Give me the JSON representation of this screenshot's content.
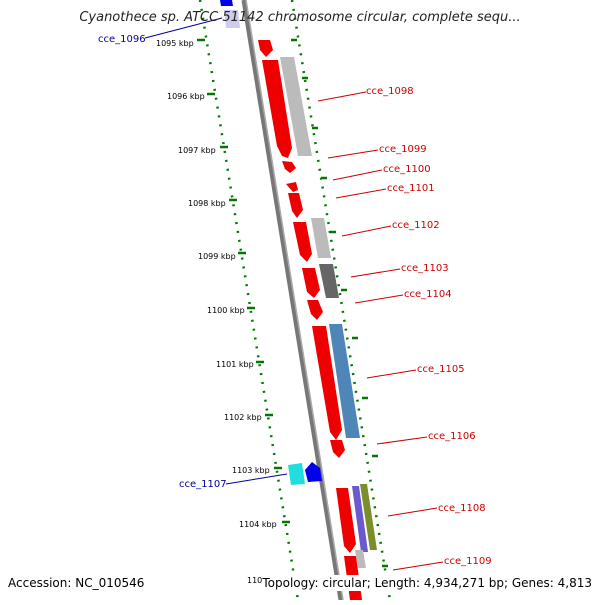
{
  "header": {
    "title": "Cyanothece sp. ATCC 51142 chromosome circular, complete sequ..."
  },
  "footer": {
    "accession": "Accession: NC_010546",
    "summary": "Topology: circular; Length: 4,934,271 bp; Genes: 4,813"
  },
  "ruler": {
    "ticks": [
      "1095 kbp",
      "1096 kbp",
      "1097 kbp",
      "1098 kbp",
      "1099 kbp",
      "1100 kbp",
      "1101 kbp",
      "1102 kbp",
      "1103 kbp",
      "1104 kbp",
      "110"
    ]
  },
  "genes_right": [
    "cce_1098",
    "cce_1099",
    "cce_1100",
    "cce_1101",
    "cce_1102",
    "cce_1103",
    "cce_1104",
    "cce_1105",
    "cce_1106",
    "cce_1108",
    "cce_1109"
  ],
  "genes_left": [
    "cce_1096",
    "cce_1107"
  ],
  "colors": {
    "cds_red": "#ee0000",
    "gray_light": "#bbbbbb",
    "gray_dark": "#666666",
    "steel_blue": "#4f86b8",
    "cyan": "#22dddd",
    "blue": "#0000ee",
    "olive": "#7a8f2a",
    "purple": "#6a5acd",
    "ruler_green": "#007700",
    "backbone": "#777777"
  }
}
